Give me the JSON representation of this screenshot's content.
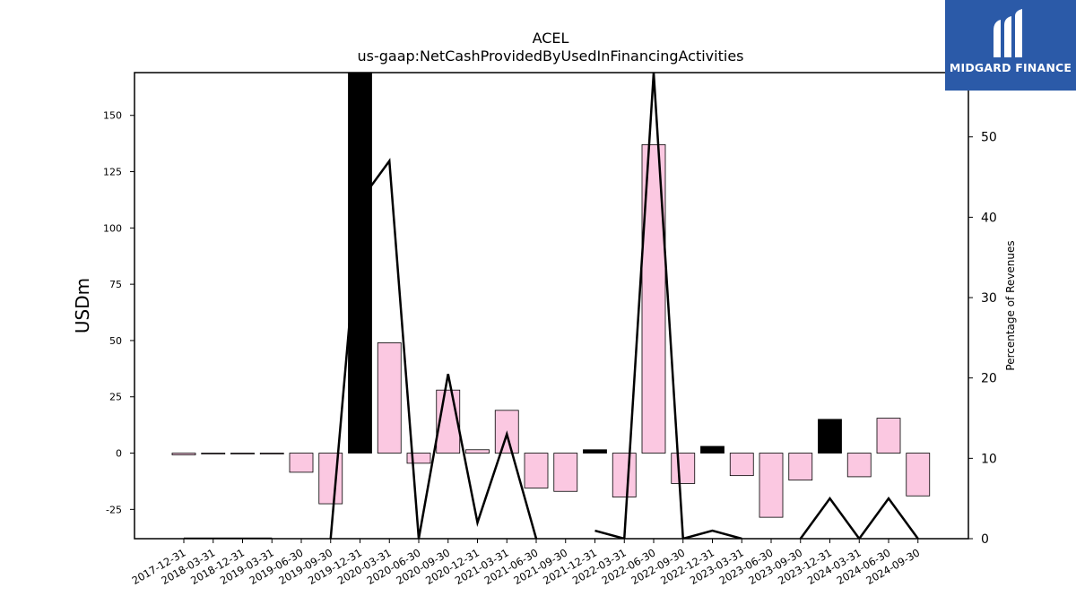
{
  "chart_data": {
    "type": "bar",
    "title": "ACEL",
    "subtitle": "us-gaap:NetCashProvidedByUsedInFinancingActivities",
    "ylabel": "USDm",
    "y2label": "Percentage of Revenues",
    "ylim": [
      -38,
      169
    ],
    "y2lim": [
      0,
      58
    ],
    "yticks": [
      -25,
      0,
      25,
      50,
      75,
      100,
      125,
      150
    ],
    "y2ticks": [
      0,
      10,
      20,
      30,
      40,
      50
    ],
    "categories": [
      "2017-12-31",
      "2018-03-31",
      "2018-12-31",
      "2019-03-31",
      "2019-06-30",
      "2019-09-30",
      "2019-12-31",
      "2020-03-31",
      "2020-06-30",
      "2020-09-30",
      "2020-12-31",
      "2021-03-31",
      "2021-06-30",
      "2021-09-30",
      "2021-12-31",
      "2022-03-31",
      "2022-06-30",
      "2022-09-30",
      "2022-12-31",
      "2023-03-31",
      "2023-06-30",
      "2023-09-30",
      "2023-12-31",
      "2024-03-31",
      "2024-06-30",
      "2024-09-30"
    ],
    "series": [
      {
        "values": [
          -0.5,
          0,
          0,
          0,
          -8.5,
          -22.5,
          172,
          49,
          -4.5,
          28,
          1.5,
          19,
          -15.5,
          -17,
          1.5,
          -19.5,
          137,
          -13.5,
          3,
          -10,
          -28.5,
          -12,
          15,
          -10.5,
          15.5,
          -19
        ]
      },
      {
        "axis": "right",
        "type": "line",
        "values": [
          0,
          0,
          0,
          0,
          null,
          0,
          42,
          47,
          0,
          20.5,
          2,
          13,
          0,
          null,
          1,
          0,
          58,
          0,
          1,
          0,
          null,
          0,
          5,
          0,
          5,
          0
        ]
      }
    ],
    "colors": {
      "positive_growth": "#000000",
      "bar": "#fbc8e1",
      "bar_edge": "#000000",
      "line": "#000000"
    }
  },
  "logo": {
    "text": "MIDGARD FINANCE",
    "background": "#2b5aa8"
  }
}
